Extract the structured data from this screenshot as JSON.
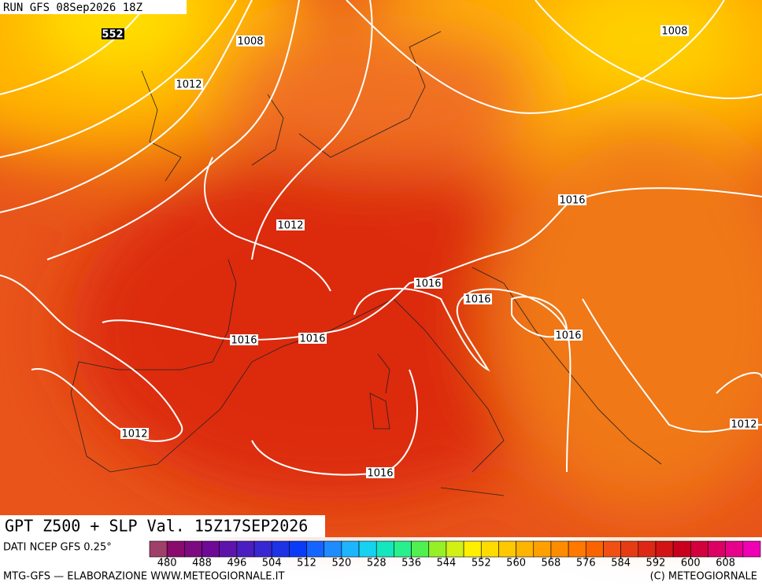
{
  "header": {
    "run": "RUN GFS 08Sep2026 18Z"
  },
  "title": "GPT Z500 + SLP Val. 15Z17SEP2026",
  "source": "DATI NCEP GFS 0.25°",
  "credit": "MTG-GFS — ELABORAZIONE WWW.METEOGIORNALE.IT",
  "copyright": "(C) METEOGIORNALE",
  "height_label": 552,
  "isobar_labels": [
    1008,
    1012,
    1008,
    1012,
    1016,
    1016,
    1016,
    1016,
    1016,
    1016,
    1012,
    1016,
    1012
  ],
  "colorbar": {
    "range": [
      476,
      616
    ],
    "ticks": [
      480,
      488,
      496,
      504,
      512,
      520,
      528,
      536,
      544,
      552,
      560,
      568,
      576,
      584,
      592,
      600,
      608
    ],
    "colors": [
      "#a0406a",
      "#8a0a6e",
      "#7d0a80",
      "#6e0a96",
      "#5e14aa",
      "#4a1ec0",
      "#3828d2",
      "#1e32e6",
      "#0a3cf8",
      "#1464ff",
      "#1e8cff",
      "#1eb4ff",
      "#14d2f0",
      "#14e6be",
      "#28f08c",
      "#50f050",
      "#96f028",
      "#d2f014",
      "#fff000",
      "#ffdc00",
      "#ffc800",
      "#ffb400",
      "#ffa000",
      "#ff8c00",
      "#ff7800",
      "#fa6400",
      "#f05014",
      "#e63c14",
      "#dc2814",
      "#d21414",
      "#c8001e",
      "#d2003c",
      "#dc0064",
      "#e6008c",
      "#f000b4"
    ]
  }
}
